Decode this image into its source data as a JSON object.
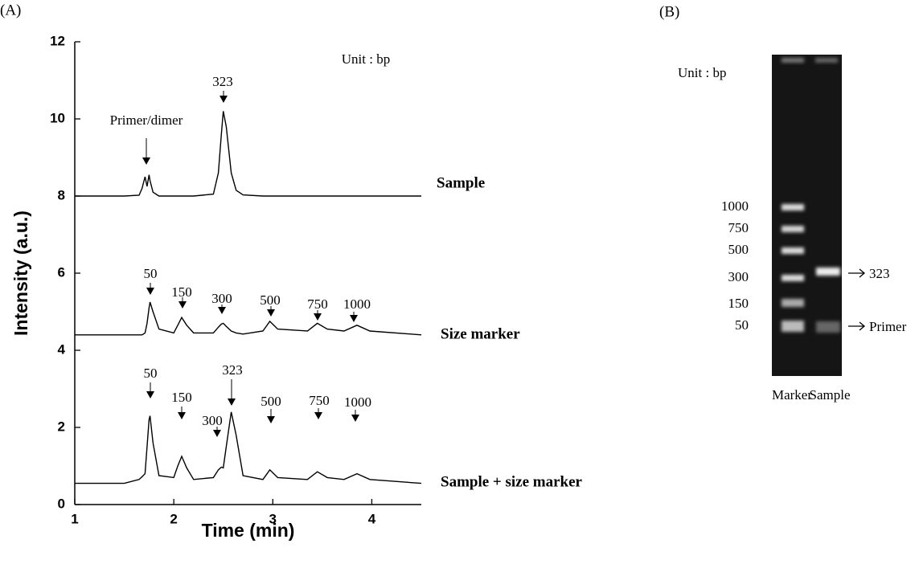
{
  "panel_a_label": "(A)",
  "chart_data": {
    "type": "line",
    "x_label": "Time (min)",
    "y_label": "Intensity (a.u.)",
    "xlim": [
      1,
      4.5
    ],
    "xticks": [
      1,
      2,
      3,
      4
    ],
    "ylim": [
      0,
      12
    ],
    "yticks": [
      0,
      2,
      4,
      6,
      8,
      10,
      12
    ],
    "color": "#000000",
    "x": [
      1.0,
      1.5,
      1.65,
      1.68,
      1.71,
      1.73,
      1.75,
      1.76,
      1.79,
      1.85,
      2.0,
      2.04,
      2.08,
      2.13,
      2.2,
      2.4,
      2.45,
      2.48,
      2.5,
      2.53,
      2.58,
      2.63,
      2.7,
      2.9,
      2.97,
      3.05,
      3.35,
      3.45,
      3.55,
      3.72,
      3.85,
      3.98,
      4.5
    ],
    "series": [
      {
        "name": "Sample",
        "values": [
          8.0,
          8.0,
          8.02,
          8.2,
          8.5,
          8.25,
          8.55,
          8.4,
          8.1,
          8.0,
          8.0,
          8.0,
          8.0,
          8.0,
          8.0,
          8.05,
          8.6,
          9.6,
          10.2,
          9.8,
          8.6,
          8.15,
          8.03,
          8.0,
          8.0,
          8.0,
          8.0,
          8.0,
          8.0,
          8.0,
          8.0,
          8.0,
          8.0
        ]
      },
      {
        "name": "Size marker",
        "values": [
          4.4,
          4.4,
          4.4,
          4.4,
          4.45,
          4.7,
          5.1,
          5.25,
          5.0,
          4.55,
          4.45,
          4.65,
          4.85,
          4.65,
          4.45,
          4.45,
          4.6,
          4.68,
          4.7,
          4.62,
          4.5,
          4.45,
          4.42,
          4.5,
          4.75,
          4.55,
          4.5,
          4.7,
          4.55,
          4.5,
          4.65,
          4.5,
          4.4
        ]
      },
      {
        "name": "Sample + size marker",
        "values": [
          0.55,
          0.55,
          0.65,
          0.72,
          0.8,
          1.5,
          2.2,
          2.3,
          1.6,
          0.75,
          0.7,
          1.0,
          1.25,
          0.95,
          0.65,
          0.7,
          0.9,
          0.97,
          0.95,
          1.5,
          2.4,
          1.8,
          0.75,
          0.65,
          0.9,
          0.7,
          0.65,
          0.85,
          0.7,
          0.65,
          0.8,
          0.65,
          0.55
        ]
      }
    ],
    "annotations": [
      "Unit : bp",
      "323",
      "Primer/dimer",
      "50",
      "150",
      "300",
      "500",
      "750",
      "1000",
      "50",
      "150",
      "300",
      "323",
      "500",
      "750",
      "1000"
    ]
  },
  "gel": {
    "panel_label": "(B)",
    "unit": "Unit : bp",
    "ladder": [
      "1000",
      "750",
      "500",
      "300",
      "150",
      "50"
    ],
    "lanes": [
      "Marker",
      "Sample"
    ],
    "bands": [
      "323",
      "Primer"
    ]
  }
}
